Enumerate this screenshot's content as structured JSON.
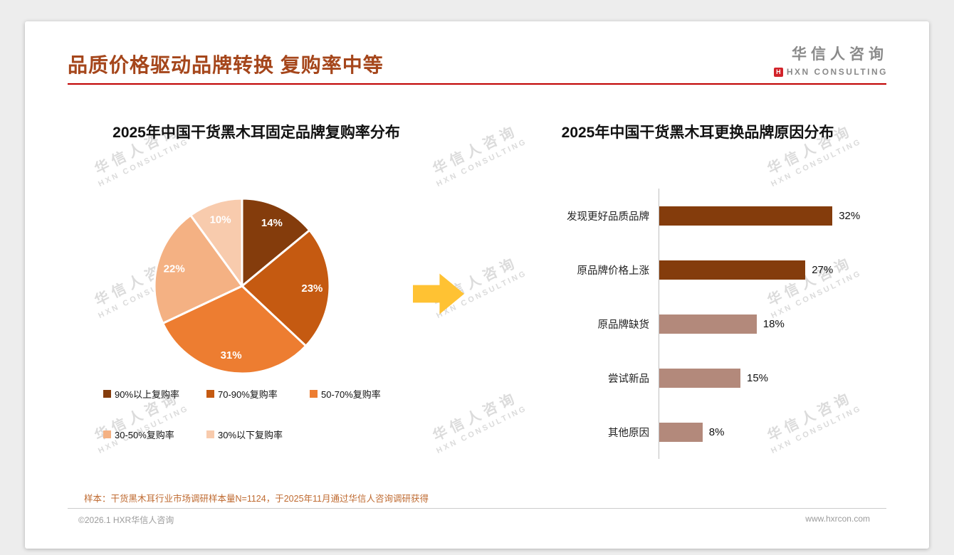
{
  "header": {
    "title": "品质价格驱动品牌转换 复购率中等"
  },
  "logo": {
    "name": "华信人咨询",
    "subtitle": "HXN CONSULTING",
    "mark_letter": "H"
  },
  "watermark": {
    "line1": "华信人咨询",
    "line2": "HXN CONSULTING"
  },
  "theme": {
    "title_color": "#A5461B",
    "rule_color": "#C00000",
    "arrow_color": "#FFC233",
    "footnote_color": "#BF6A30",
    "footer_color": "#9B9B9B",
    "logo_color": "#8A8A8A",
    "logo_mark_color": "#D2232A",
    "axis_color": "#BFBFBF"
  },
  "chart_data": [
    {
      "type": "pie",
      "title": "2025年中国干货黑木耳固定品牌复购率分布",
      "labels": [
        "90%以上复购率",
        "70-90%复购率",
        "50-70%复购率",
        "30-50%复购率",
        "30%以下复购率"
      ],
      "values": [
        14,
        23,
        31,
        22,
        10
      ],
      "data_labels": [
        "14%",
        "23%",
        "31%",
        "22%",
        "10%"
      ],
      "colors": [
        "#843C0C",
        "#C55A11",
        "#ED7D31",
        "#F4B183",
        "#F8CBAD"
      ],
      "legend_position": "bottom",
      "start_angle": 0,
      "direction": "clockwise"
    },
    {
      "type": "bar",
      "orientation": "horizontal",
      "title": "2025年中国干货黑木耳更换品牌原因分布",
      "categories": [
        "发现更好品质品牌",
        "原品牌价格上涨",
        "原品牌缺货",
        "尝试新品",
        "其他原因"
      ],
      "values": [
        32,
        27,
        18,
        15,
        8
      ],
      "value_labels": [
        "32%",
        "27%",
        "18%",
        "15%",
        "8%"
      ],
      "colors": [
        "#843C0C",
        "#843C0C",
        "#B3897B",
        "#B3897B",
        "#B3897B"
      ],
      "xlim": [
        0,
        35
      ],
      "grid": false
    }
  ],
  "footnote": "样本：干货黑木耳行业市场调研样本量N=1124，于2025年11月通过华信人咨询调研获得",
  "footer": {
    "left": "©2026.1 HXR华信人咨询",
    "right": "www.hxrcon.com"
  }
}
